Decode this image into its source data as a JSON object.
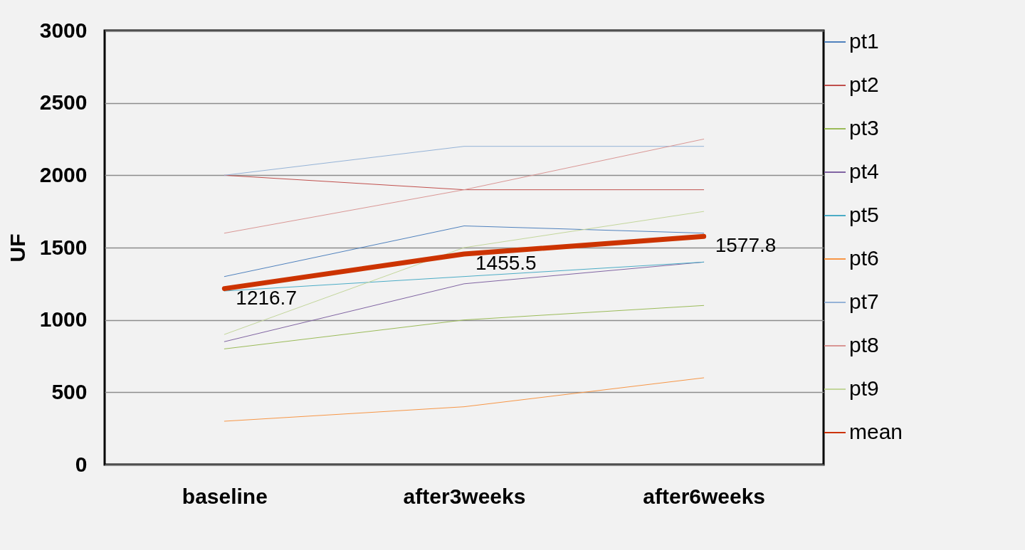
{
  "chart_data": {
    "type": "line",
    "ylabel": "UF",
    "categories": [
      "baseline",
      "after3weeks",
      "after6weeks"
    ],
    "ylim": [
      0,
      3000
    ],
    "yticks": [
      0,
      500,
      1000,
      1500,
      2000,
      2500,
      3000
    ],
    "grid": "y",
    "legend": "right",
    "marker": "none",
    "line_style": "solid",
    "series": [
      {
        "name": "pt1",
        "color": "#4f81bd",
        "values": [
          1300,
          1650,
          1600
        ]
      },
      {
        "name": "pt2",
        "color": "#c0504d",
        "values": [
          2000,
          1900,
          1900
        ]
      },
      {
        "name": "pt3",
        "color": "#9bbb59",
        "values": [
          800,
          1000,
          1100
        ]
      },
      {
        "name": "pt4",
        "color": "#8064a2",
        "values": [
          850,
          1250,
          1400
        ]
      },
      {
        "name": "pt5",
        "color": "#4bacc6",
        "values": [
          1200,
          1300,
          1400
        ]
      },
      {
        "name": "pt6",
        "color": "#f79646",
        "values": [
          300,
          400,
          600
        ]
      },
      {
        "name": "pt7",
        "color": "#95b3d7",
        "values": [
          2000,
          2200,
          2200
        ]
      },
      {
        "name": "pt8",
        "color": "#d99694",
        "values": [
          1600,
          1900,
          2250
        ]
      },
      {
        "name": "pt9",
        "color": "#c3d69b",
        "values": [
          900,
          1500,
          1750
        ]
      },
      {
        "name": "mean",
        "color": "#cc3300",
        "values": [
          1216.7,
          1455.5,
          1577.8
        ],
        "value_labels": [
          "1216.7",
          "1455.5",
          "1577.8"
        ]
      }
    ]
  }
}
